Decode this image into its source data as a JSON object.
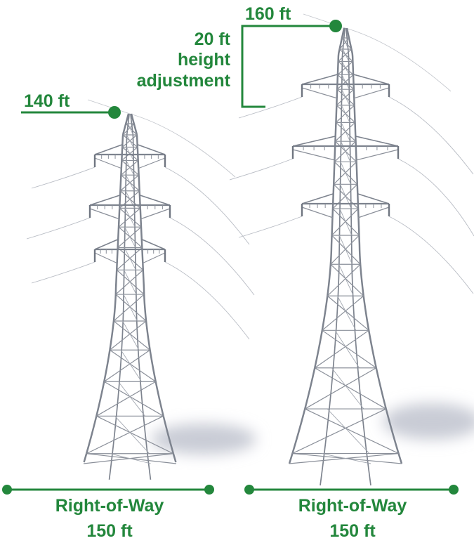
{
  "towers": [
    {
      "height_label": "140 ft",
      "right_of_way": {
        "label": "Right-of-Way",
        "width": "150 ft"
      }
    },
    {
      "height_label": "160 ft",
      "right_of_way": {
        "label": "Right-of-Way",
        "width": "150 ft"
      }
    }
  ],
  "adjustment": {
    "lines": [
      "20 ft",
      "height",
      "adjustment"
    ]
  }
}
